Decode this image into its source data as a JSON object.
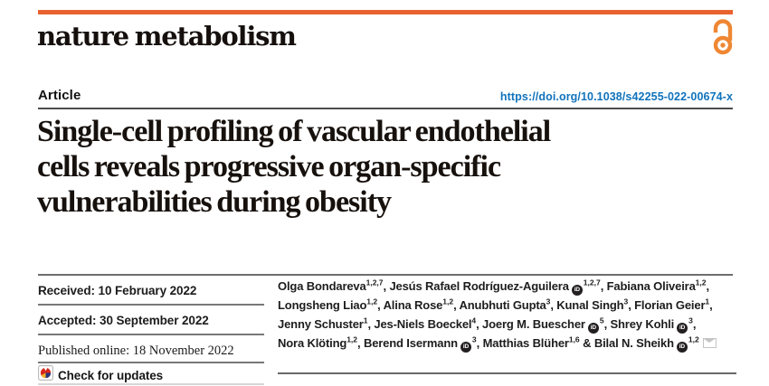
{
  "masthead": {
    "journal": "nature metabolism"
  },
  "article_bar": {
    "label": "Article",
    "doi": "https://doi.org/10.1038/s42255-022-00674-x"
  },
  "title": {
    "lines": [
      "Single-cell profiling of vascular endothelial",
      "cells reveals progressive organ-specific",
      "vulnerabilities during obesity"
    ]
  },
  "history": {
    "rows": [
      {
        "label": "Received:",
        "date": "10 February 2022"
      },
      {
        "label": "Accepted:",
        "date": "30 September 2022"
      },
      {
        "label": "Published online:",
        "date": "18 November 2022"
      }
    ],
    "check_label": "Check for updates"
  },
  "authors": {
    "orcid_glyph": "iD",
    "lines": [
      [
        {
          "text": "Olga Bondareva",
          "sup": "1,2,7"
        },
        {
          "text": ", Jesús Rafael Rodríguez-Aguilera",
          "orcid": true,
          "sup": "1,2,7"
        },
        {
          "text": ", Fabiana Oliveira",
          "sup": "1,2"
        },
        {
          "text": ","
        }
      ],
      [
        {
          "text": "Longsheng Liao",
          "sup": "1,2"
        },
        {
          "text": ", Alina Rose",
          "sup": "1,2"
        },
        {
          "text": ", Anubhuti Gupta",
          "sup": "3"
        },
        {
          "text": ", Kunal Singh",
          "sup": "3"
        },
        {
          "text": ", Florian Geier",
          "sup": "1"
        },
        {
          "text": ","
        }
      ],
      [
        {
          "text": "Jenny Schuster",
          "sup": "1"
        },
        {
          "text": ", Jes-Niels Boeckel",
          "sup": "4"
        },
        {
          "text": ", Joerg M. Buescher",
          "orcid": true,
          "sup": "5"
        },
        {
          "text": ", Shrey Kohli",
          "orcid": true,
          "sup": "3"
        },
        {
          "text": ","
        }
      ],
      [
        {
          "text": "Nora Klöting",
          "sup": "1,2"
        },
        {
          "text": ", Berend Isermann",
          "orcid": true,
          "sup": "3"
        },
        {
          "text": ", Matthias Blüher",
          "sup": "1,6"
        },
        {
          "text": " & Bilal N. Sheikh",
          "orcid": true,
          "sup": "1,2",
          "mail": true
        }
      ]
    ]
  },
  "icons": {
    "open_access": "open-access-padlock",
    "crossmark": "crossmark-check-for-updates",
    "orcid": "orcid-id-badge",
    "email": "corresponding-author-envelope"
  },
  "colors": {
    "accent_orange_bar": "#e8622f",
    "open_access_orange": "#ef8733",
    "doi_blue": "#1173bc",
    "orcid_black": "#231f20",
    "crossmark_red": "#d6281e",
    "crossmark_blue": "#27357e",
    "crossmark_yellow": "#f0b32a",
    "rule_dark": "#4d4d4d",
    "rule_gray": "#787878",
    "rule_light": "#d6d6d6",
    "mail_gray": "#c4c4c4"
  }
}
